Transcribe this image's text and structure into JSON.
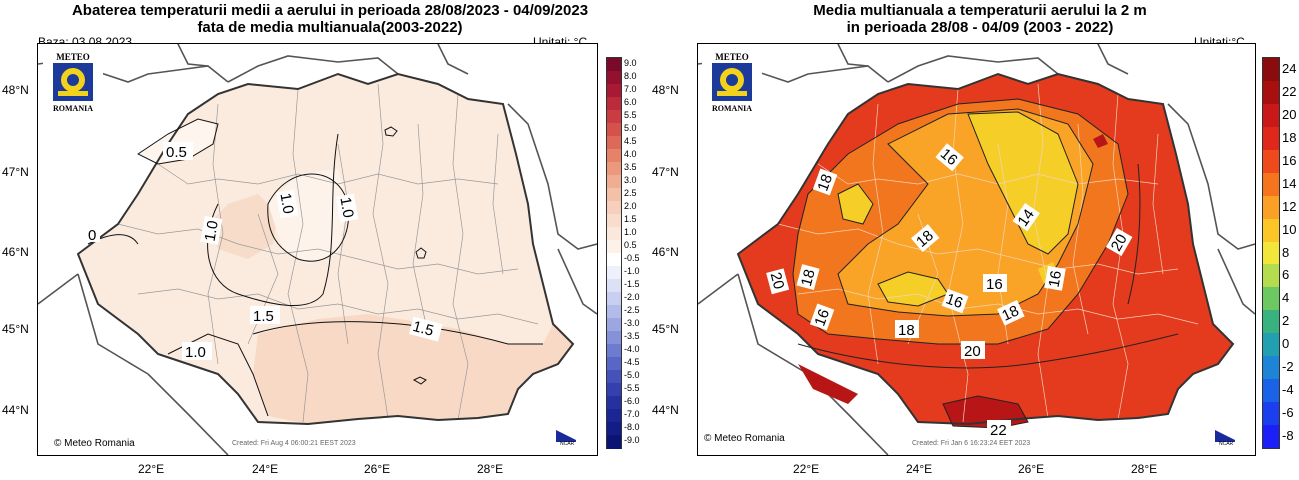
{
  "left": {
    "title_line1": "Abaterea temperaturii medii a aerului in perioada 28/08/2023 - 04/09/2023",
    "title_line2": "fata de media multianuala(2003-2022)",
    "base_date": "Baza: 03.08.2023",
    "units": "Unitati: °C",
    "logo_top": "METEO",
    "logo_bottom": "ROMANIA",
    "credit": "© Meteo Romania",
    "created": "Created: Fri Aug  4 06:00:21 EEST 2023",
    "ncar": "NCAR",
    "lat_labels": [
      "48°N",
      "47°N",
      "46°N",
      "45°N",
      "44°N"
    ],
    "lon_labels": [
      "22°E",
      "24°E",
      "26°E",
      "28°E"
    ],
    "contour_labels": [
      "0.5",
      "1.0",
      "1.0",
      "1.0",
      "0",
      "1.5",
      "1.5",
      "1.0"
    ],
    "legend_labels": [
      "9.0",
      "8.0",
      "7.0",
      "6.0",
      "5.5",
      "5.0",
      "4.5",
      "4.0",
      "3.5",
      "3.0",
      "2.5",
      "2.0",
      "1.5",
      "1.0",
      "0.5",
      "-0.5",
      "-1.0",
      "-1.5",
      "-2.0",
      "-2.5",
      "-3.0",
      "-3.5",
      "-4.0",
      "-4.5",
      "-5.0",
      "-5.5",
      "-6.0",
      "-7.0",
      "-8.0",
      "-9.0"
    ],
    "legend_colors": [
      "#7a0a2a",
      "#93102f",
      "#a81a34",
      "#bb2b3b",
      "#c93d42",
      "#d4524c",
      "#dd6a58",
      "#e58268",
      "#eb987c",
      "#f0ad92",
      "#f3c0a8",
      "#f6d0bc",
      "#f8ddcd",
      "#fae8dc",
      "#fcf2ea",
      "#ffffff",
      "#eef0fb",
      "#dde1f6",
      "#c9cff0",
      "#b3bbe9",
      "#9ca6e1",
      "#8591d8",
      "#6e7ccf",
      "#5866c5",
      "#4452ba",
      "#3340ae",
      "#2431a1",
      "#1a2694",
      "#121d85",
      "#0b1475"
    ]
  },
  "right": {
    "title_line1": "Media multianuala a temperaturii aerului la 2 m",
    "title_line2": "in perioada 28/08 - 04/09 (2003 - 2022)",
    "units": "Unitati:°C",
    "logo_top": "METEO",
    "logo_bottom": "ROMANIA",
    "credit": "© Meteo Romania",
    "created": "Created: Fri Jan  6 16:23:24 EET 2023",
    "ncar": "NCAR",
    "lat_labels": [
      "48°N",
      "47°N",
      "46°N",
      "45°N",
      "44°N"
    ],
    "lon_labels": [
      "22°E",
      "24°E",
      "26°E",
      "28°E"
    ],
    "contour_labels": [
      "16",
      "18",
      "18",
      "20",
      "18",
      "16",
      "16",
      "18",
      "16",
      "14",
      "16",
      "18",
      "20",
      "20",
      "22"
    ],
    "legend_labels": [
      "24",
      "22",
      "20",
      "18",
      "16",
      "14",
      "12",
      "10",
      "8",
      "6",
      "4",
      "2",
      "0",
      "-2",
      "-4",
      "-6",
      "-8"
    ],
    "legend_colors": [
      "#8a0c0c",
      "#a81010",
      "#c81818",
      "#e0281a",
      "#ee4a1c",
      "#f6741e",
      "#faa024",
      "#fcc626",
      "#f2e63a",
      "#b4dc4e",
      "#6cc860",
      "#38b27e",
      "#22a0b2",
      "#1e84d6",
      "#1a62e6",
      "#1a40ee",
      "#1a20f6"
    ]
  },
  "colors": {
    "left_base_fill": "#fbebdf",
    "left_mid_fill": "#f7d9c6",
    "left_light_fill": "#fdf5ee",
    "right_base_fill": "#e43a1e",
    "right_mid_fill": "#f2761e",
    "right_warm_fill": "#f9a426",
    "right_cool_fill": "#f5cf28",
    "right_hot_fill": "#b81616"
  }
}
